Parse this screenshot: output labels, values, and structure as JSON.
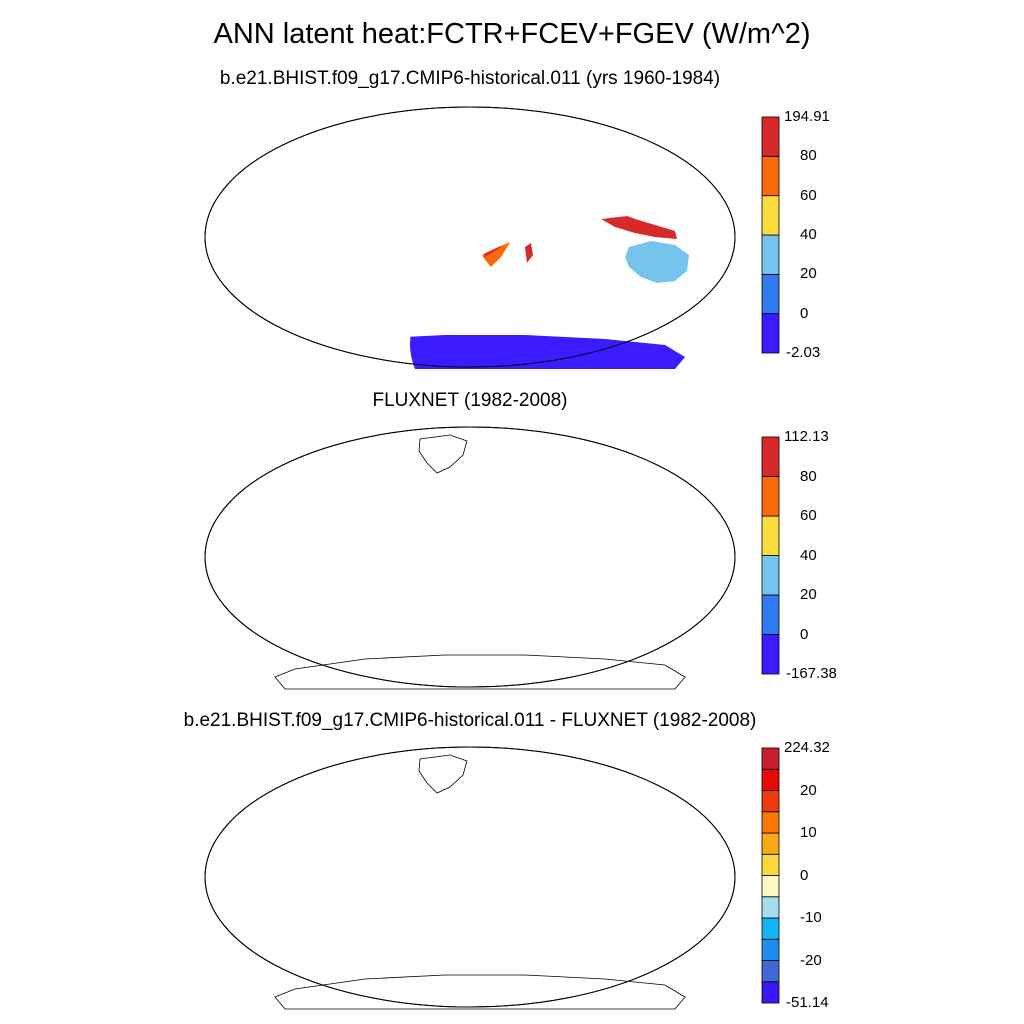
{
  "title": "ANN latent heat:FCTR+FCEV+FGEV (W/m^2)",
  "panels": [
    {
      "subtitle": "b.e21.BHIST.f09_g17.CMIP6-historical.011 (yrs 1960-1984)",
      "colorbar": {
        "colors": [
          "#3b1bff",
          "#2f7bf2",
          "#76c3ee",
          "#fbdc3c",
          "#fb6a08",
          "#d7282a"
        ],
        "labels": [
          "-2.03",
          "0",
          "20",
          "40",
          "60",
          "80",
          "194.91"
        ]
      }
    },
    {
      "subtitle": "FLUXNET (1982-2008)",
      "colorbar": {
        "colors": [
          "#3b1bff",
          "#2f7bf2",
          "#76c3ee",
          "#fbdc3c",
          "#fb6a08",
          "#d7282a"
        ],
        "labels": [
          "-167.38",
          "0",
          "20",
          "40",
          "60",
          "80",
          "112.13"
        ]
      }
    },
    {
      "subtitle": "b.e21.BHIST.f09_g17.CMIP6-historical.011 - FLUXNET (1982-2008)",
      "colorbar": {
        "colors": [
          "#3a18f5",
          "#3d6ad8",
          "#1e8cf0",
          "#14b4f5",
          "#a6dcf0",
          "#fff8c0",
          "#fcd73c",
          "#fba818",
          "#fb7808",
          "#f03a0c",
          "#e40a0a",
          "#c81e2e"
        ],
        "labels": [
          "-51.14",
          "-20",
          "-10",
          "0",
          "10",
          "20",
          "224.32"
        ],
        "label_steps": [
          0,
          2,
          4,
          6,
          8,
          10,
          12
        ]
      }
    }
  ]
}
